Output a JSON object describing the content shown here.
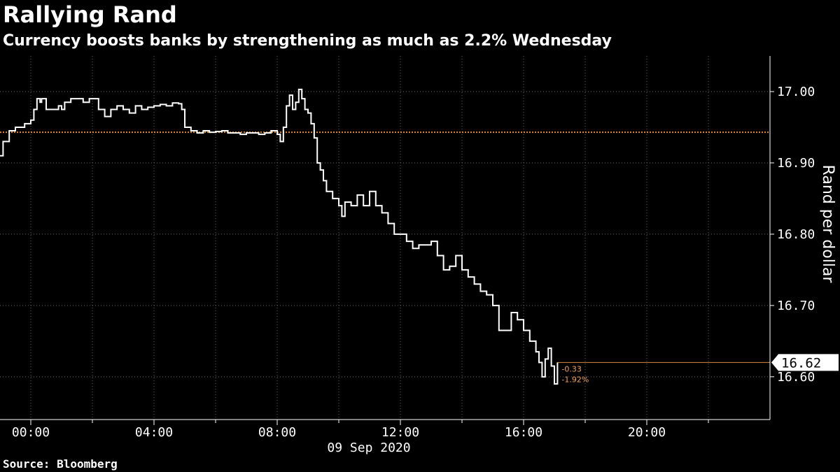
{
  "header": {
    "title": "Rallying Rand",
    "subtitle": "Currency boosts banks by strengthening as much as 2.2% Wednesday"
  },
  "footer": {
    "source": "Source: Bloomberg"
  },
  "colors": {
    "background": "#000000",
    "line": "#ffffff",
    "reference": "#d98c3c",
    "grid": "#666666",
    "annotation": "#f0a060"
  },
  "chart_data": {
    "type": "line",
    "ylabel": "Rand per dollar",
    "xlabel": "09 Sep 2020",
    "y_ticks": [
      "17.00",
      "16.90",
      "16.80",
      "16.70",
      "16.60"
    ],
    "y_tick_values": [
      17.0,
      16.9,
      16.8,
      16.7,
      16.6
    ],
    "x_ticks": [
      "00:00",
      "04:00",
      "08:00",
      "12:00",
      "16:00",
      "20:00"
    ],
    "x_tick_hours": [
      0,
      4,
      8,
      12,
      16,
      20
    ],
    "xlim": [
      -1,
      24
    ],
    "ylim": [
      16.54,
      17.05
    ],
    "grid": true,
    "reference_line": 16.943,
    "last_value_label": "16.62",
    "last_value": 16.62,
    "change_abs": "-0.33",
    "change_pct": "-1.92%",
    "series": [
      {
        "x": [
          -1,
          -0.9,
          -0.7,
          -0.5,
          -0.2,
          0,
          0.1,
          0.2,
          0.3,
          0.35,
          0.5,
          0.7,
          0.9,
          1.0,
          1.1,
          1.3,
          1.5,
          1.7,
          1.9,
          2.0,
          2.2,
          2.4,
          2.6,
          2.8,
          3.0,
          3.2,
          3.4,
          3.6,
          3.8,
          4.0,
          4.2,
          4.4,
          4.6,
          4.8,
          4.9,
          5.0,
          5.2,
          5.4,
          5.6,
          5.8,
          6.0,
          6.2,
          6.4,
          6.6,
          6.8,
          7.0,
          7.2,
          7.4,
          7.6,
          7.8,
          8.0,
          8.1,
          8.2,
          8.3,
          8.4,
          8.5,
          8.6,
          8.7,
          8.8,
          8.9,
          9.0,
          9.1,
          9.2,
          9.3,
          9.4,
          9.5,
          9.6,
          9.8,
          10.0,
          10.1,
          10.2,
          10.4,
          10.6,
          10.8,
          11.0,
          11.2,
          11.4,
          11.6,
          11.8,
          12.0,
          12.2,
          12.4,
          12.6,
          12.8,
          13.0,
          13.2,
          13.4,
          13.6,
          13.8,
          14.0,
          14.2,
          14.4,
          14.6,
          14.8,
          15.0,
          15.2,
          15.4,
          15.6,
          15.8,
          16.0,
          16.2,
          16.4,
          16.5,
          16.6,
          16.7,
          16.8,
          16.9,
          17.0,
          17.1
        ],
        "y": [
          16.91,
          16.93,
          16.945,
          16.95,
          16.955,
          16.96,
          16.975,
          16.99,
          16.985,
          16.99,
          16.975,
          16.975,
          16.98,
          16.975,
          16.985,
          16.99,
          16.99,
          16.985,
          16.99,
          16.99,
          16.975,
          16.965,
          16.975,
          16.98,
          16.975,
          16.97,
          16.98,
          16.975,
          16.978,
          16.98,
          16.982,
          16.98,
          16.984,
          16.983,
          16.975,
          16.95,
          16.945,
          16.942,
          16.945,
          16.943,
          16.944,
          16.945,
          16.942,
          16.942,
          16.94,
          16.942,
          16.942,
          16.94,
          16.942,
          16.945,
          16.94,
          16.93,
          16.95,
          16.98,
          16.995,
          16.975,
          16.985,
          17.003,
          16.99,
          16.975,
          16.97,
          16.955,
          16.935,
          16.9,
          16.89,
          16.875,
          16.86,
          16.85,
          16.84,
          16.825,
          16.845,
          16.84,
          16.855,
          16.84,
          16.86,
          16.84,
          16.83,
          16.815,
          16.8,
          16.8,
          16.79,
          16.78,
          16.785,
          16.785,
          16.79,
          16.77,
          16.75,
          16.755,
          16.77,
          16.75,
          16.74,
          16.73,
          16.72,
          16.715,
          16.7,
          16.665,
          16.665,
          16.69,
          16.68,
          16.665,
          16.65,
          16.635,
          16.62,
          16.6,
          16.625,
          16.64,
          16.615,
          16.59,
          16.62
        ]
      }
    ]
  }
}
